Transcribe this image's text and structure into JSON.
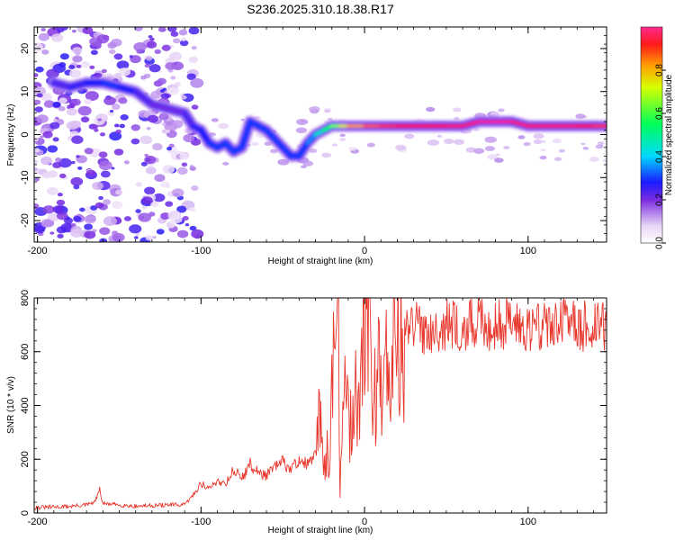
{
  "title": "S236.2025.310.18.38.R17",
  "chart_data": [
    {
      "type": "heatmap",
      "xlabel": "Height of straight line (km)",
      "ylabel": "Frequency (Hz)",
      "xlim": [
        -202,
        148
      ],
      "ylim": [
        -25,
        25
      ],
      "xticks": [
        -200,
        -100,
        0,
        100
      ],
      "xtick_labels": [
        "-200",
        "-100",
        "0",
        "100"
      ],
      "yticks": [
        -20,
        -10,
        0,
        10,
        20
      ],
      "ytick_labels": [
        "-20",
        "-10",
        "0",
        "10",
        "20"
      ],
      "colorbar": {
        "label": "Normalized spectral amplitude",
        "range": [
          0,
          1
        ],
        "ticks": [
          0.0,
          0.2,
          0.4,
          0.6,
          0.8
        ],
        "tick_labels": [
          "0.0",
          "0.2",
          "0.4",
          "0.6",
          "0.8"
        ]
      },
      "trace": {
        "x": [
          -190,
          -180,
          -170,
          -160,
          -150,
          -140,
          -130,
          -120,
          -110,
          -105,
          -100,
          -95,
          -90,
          -85,
          -80,
          -75,
          -70,
          -65,
          -60,
          -55,
          -50,
          -45,
          -40,
          -35,
          -30,
          -25,
          -20,
          -15,
          -10,
          0,
          10,
          20,
          30,
          40,
          50,
          60,
          70,
          80,
          90,
          100,
          110,
          120,
          130,
          140,
          148
        ],
        "y": [
          12,
          11,
          12,
          12,
          11,
          10,
          7,
          6,
          5,
          2,
          1,
          -2,
          -3,
          -2,
          -4,
          -3,
          3,
          2,
          1,
          -1,
          -3,
          -5,
          -5,
          -2,
          0,
          1,
          2,
          2,
          2,
          2,
          2,
          2,
          2,
          2,
          2,
          2,
          3,
          3,
          3,
          2,
          2,
          2,
          2,
          2,
          2
        ],
        "amplitude": [
          0.2,
          0.25,
          0.25,
          0.3,
          0.3,
          0.25,
          0.2,
          0.2,
          0.2,
          0.25,
          0.25,
          0.3,
          0.3,
          0.3,
          0.3,
          0.3,
          0.3,
          0.3,
          0.3,
          0.3,
          0.3,
          0.3,
          0.3,
          0.3,
          0.4,
          0.5,
          0.6,
          0.7,
          0.8,
          0.85,
          0.9,
          0.9,
          0.95,
          0.9,
          0.95,
          0.95,
          1.0,
          1.0,
          1.0,
          0.95,
          0.95,
          0.95,
          0.95,
          0.9,
          0.9
        ]
      }
    },
    {
      "type": "line",
      "xlabel": "Height of straight line (km)",
      "ylabel": "SNR (10 * v/v)",
      "xlim": [
        -202,
        148
      ],
      "ylim": [
        0,
        800
      ],
      "xticks": [
        -200,
        -100,
        0,
        100
      ],
      "xtick_labels": [
        "-200",
        "-100",
        "0",
        "100"
      ],
      "yticks": [
        0,
        200,
        400,
        600,
        800
      ],
      "ytick_labels": [
        "0",
        "200",
        "400",
        "600",
        "800"
      ],
      "series": [
        {
          "name": "SNR",
          "color": "#e8362c",
          "x": [
            -202,
            -190,
            -180,
            -170,
            -165,
            -162,
            -160,
            -150,
            -140,
            -130,
            -120,
            -110,
            -105,
            -100,
            -95,
            -90,
            -85,
            -80,
            -75,
            -70,
            -65,
            -60,
            -55,
            -50,
            -45,
            -40,
            -35,
            -30,
            -28,
            -25,
            -22,
            -20,
            -18,
            -16,
            -15,
            -12,
            -10,
            -8,
            -5,
            -3,
            0,
            3,
            5,
            8,
            10,
            12,
            15,
            20,
            25,
            30,
            35,
            40,
            50,
            60,
            70,
            80,
            90,
            100,
            110,
            120,
            130,
            140,
            148
          ],
          "y": [
            20,
            22,
            25,
            30,
            40,
            85,
            35,
            30,
            25,
            28,
            30,
            30,
            65,
            110,
            90,
            120,
            110,
            160,
            130,
            180,
            150,
            140,
            170,
            190,
            160,
            200,
            180,
            210,
            360,
            200,
            250,
            400,
            600,
            750,
            100,
            450,
            350,
            300,
            500,
            380,
            620,
            820,
            400,
            500,
            580,
            500,
            620,
            600,
            660,
            700,
            680,
            690,
            700,
            690,
            705,
            700,
            710,
            695,
            700,
            705,
            700,
            690,
            700
          ]
        }
      ]
    }
  ]
}
